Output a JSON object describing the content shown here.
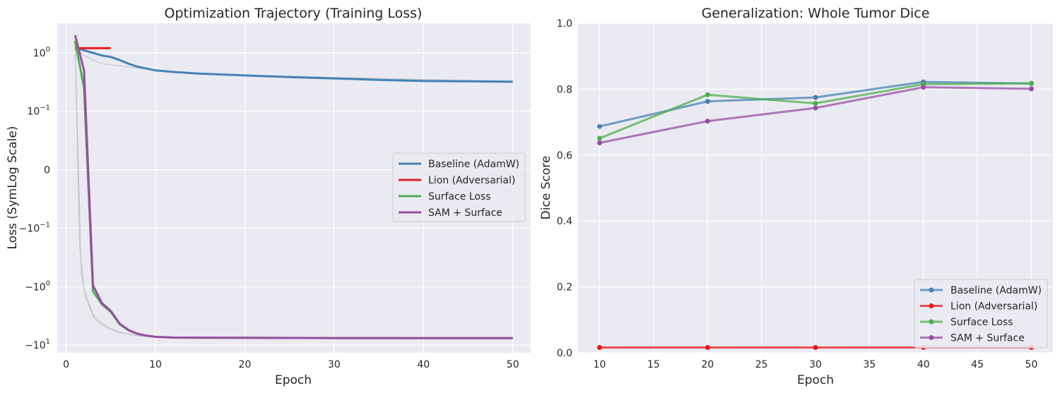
{
  "charts": [
    {
      "title": "Optimization Trajectory (Training Loss)",
      "xlabel": "Epoch",
      "ylabel": "Loss (SymLog Scale)",
      "xticks": [
        "0",
        "10",
        "20",
        "30",
        "40",
        "50"
      ],
      "yticks": [
        {
          "base": "10",
          "exp": "0",
          "sign": ""
        },
        {
          "base": "10",
          "exp": "−1",
          "sign": ""
        },
        {
          "base": "0",
          "exp": "",
          "sign": ""
        },
        {
          "base": "10",
          "exp": "−1",
          "sign": "−"
        },
        {
          "base": "10",
          "exp": "0",
          "sign": "−"
        },
        {
          "base": "10",
          "exp": "1",
          "sign": "−"
        }
      ],
      "legend": [
        "Baseline (AdamW)",
        "Lion (Adversarial)",
        "Surface Loss",
        "SAM + Surface"
      ]
    },
    {
      "title": "Generalization: Whole Tumor Dice",
      "xlabel": "Epoch",
      "ylabel": "Dice Score",
      "xticks": [
        "10",
        "15",
        "20",
        "25",
        "30",
        "35",
        "40",
        "45",
        "50"
      ],
      "yticks": [
        "1.0",
        "0.8",
        "0.6",
        "0.4",
        "0.2",
        "0.0"
      ],
      "legend": [
        "Baseline (AdamW)",
        "Lion (Adversarial)",
        "Surface Loss",
        "SAM + Surface"
      ]
    }
  ],
  "chart_data": [
    {
      "type": "line",
      "title": "Optimization Trajectory (Training Loss)",
      "xlabel": "Epoch",
      "ylabel": "Loss (SymLog Scale)",
      "yscale": "symlog",
      "xlim": [
        -1,
        52
      ],
      "grid": true,
      "legend_position": "center-right",
      "series": [
        {
          "name": "Baseline (AdamW)",
          "color": "#4682b4",
          "x": [
            1,
            2,
            3,
            4,
            5,
            6,
            7,
            8,
            10,
            12,
            15,
            20,
            25,
            30,
            35,
            40,
            45,
            50
          ],
          "y": [
            1.25,
            1.1,
            1.0,
            0.9,
            0.85,
            0.75,
            0.65,
            0.58,
            0.5,
            0.47,
            0.44,
            0.41,
            0.385,
            0.365,
            0.345,
            0.33,
            0.325,
            0.32
          ]
        },
        {
          "name": "Lion (Adversarial)",
          "color": "#e41a1c",
          "x": [
            1,
            2,
            3,
            4,
            5
          ],
          "y": [
            1.2,
            1.2,
            1.2,
            1.2,
            1.2
          ]
        },
        {
          "name": "Surface Loss",
          "color": "#4daf4a",
          "x": [
            1,
            2,
            3,
            4,
            5,
            6,
            7,
            8,
            9,
            10,
            12,
            15,
            20,
            30,
            40,
            50
          ],
          "y": [
            1.6,
            0.25,
            -1.2,
            -2.0,
            -2.7,
            -4.4,
            -5.6,
            -6.4,
            -6.9,
            -7.2,
            -7.4,
            -7.45,
            -7.5,
            -7.55,
            -7.6,
            -7.6
          ]
        },
        {
          "name": "SAM + Surface",
          "color": "#984ea3",
          "x": [
            1,
            2,
            3,
            4,
            5,
            6,
            7,
            8,
            9,
            10,
            12,
            15,
            20,
            30,
            40,
            50
          ],
          "y": [
            2.0,
            0.5,
            -0.95,
            -1.9,
            -2.6,
            -4.3,
            -5.5,
            -6.4,
            -6.9,
            -7.2,
            -7.4,
            -7.45,
            -7.5,
            -7.55,
            -7.6,
            -7.6
          ]
        }
      ]
    },
    {
      "type": "line",
      "title": "Generalization: Whole Tumor Dice",
      "xlabel": "Epoch",
      "ylabel": "Dice Score",
      "xlim": [
        8,
        52
      ],
      "ylim": [
        0.0,
        1.0
      ],
      "grid": true,
      "legend_position": "bottom-right",
      "series": [
        {
          "name": "Baseline (AdamW)",
          "color": "#4682b4",
          "x": [
            10,
            20,
            30,
            40,
            50
          ],
          "y": [
            0.687,
            0.763,
            0.775,
            0.822,
            0.817
          ]
        },
        {
          "name": "Lion (Adversarial)",
          "color": "#e41a1c",
          "x": [
            10,
            20,
            30,
            40,
            50
          ],
          "y": [
            0.016,
            0.016,
            0.016,
            0.016,
            0.016
          ]
        },
        {
          "name": "Surface Loss",
          "color": "#4daf4a",
          "x": [
            10,
            20,
            30,
            40,
            50
          ],
          "y": [
            0.651,
            0.783,
            0.757,
            0.815,
            0.818
          ]
        },
        {
          "name": "SAM + Surface",
          "color": "#984ea3",
          "x": [
            10,
            20,
            30,
            40,
            50
          ],
          "y": [
            0.637,
            0.703,
            0.743,
            0.806,
            0.801
          ]
        }
      ]
    }
  ]
}
